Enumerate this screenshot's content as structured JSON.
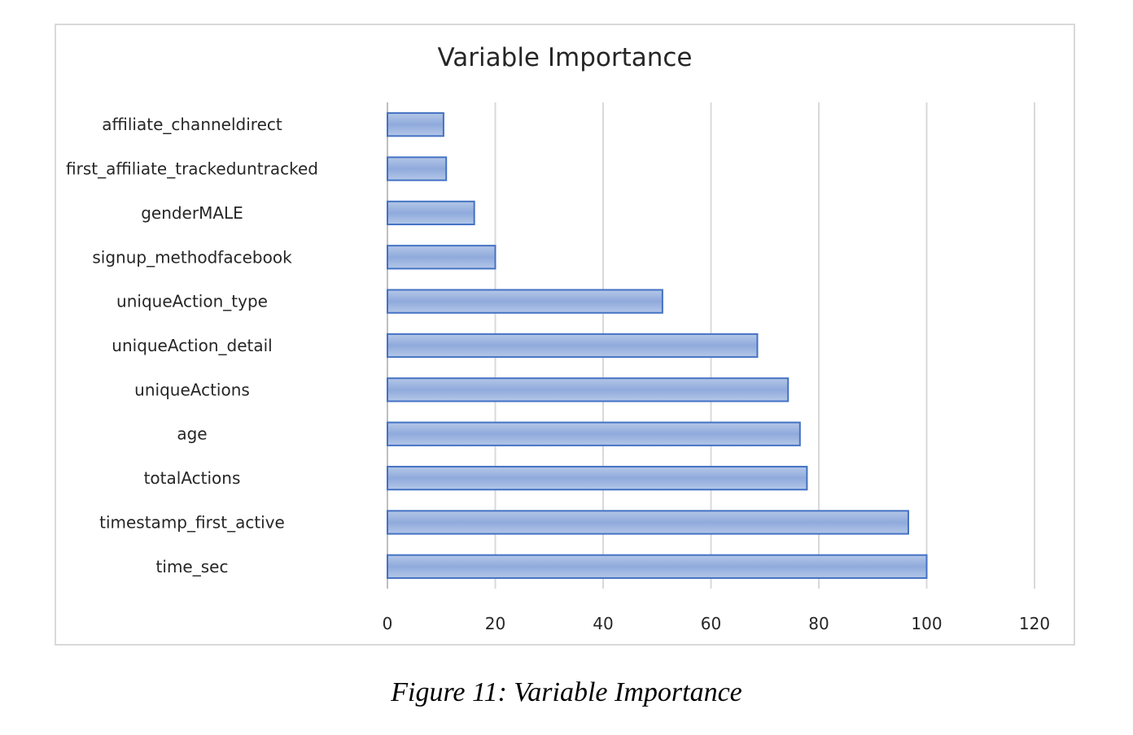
{
  "caption": "Figure 11: Variable Importance",
  "chart_data": {
    "type": "bar",
    "orientation": "horizontal",
    "title": "Variable Importance",
    "xlabel": "",
    "ylabel": "",
    "categories": [
      "affiliate_channeldirect",
      "first_affiliate_trackeduntracked",
      "genderMALE",
      "signup_methodfacebook",
      "uniqueAction_type",
      "uniqueAction_detail",
      "uniqueActions",
      "age",
      "totalActions",
      "timestamp_first_active",
      "time_sec"
    ],
    "values": [
      10.4,
      10.9,
      16.1,
      20.0,
      51.0,
      68.6,
      74.3,
      76.5,
      77.8,
      96.6,
      100.0
    ],
    "xlim": [
      0,
      120
    ],
    "xticks": [
      0,
      20,
      40,
      60,
      80,
      100,
      120
    ],
    "grid": true,
    "legend": "none",
    "bar_color": "#4472c4",
    "bar_fill_light": "#b4c7e7",
    "bar_fill_dark": "#8faadc"
  }
}
